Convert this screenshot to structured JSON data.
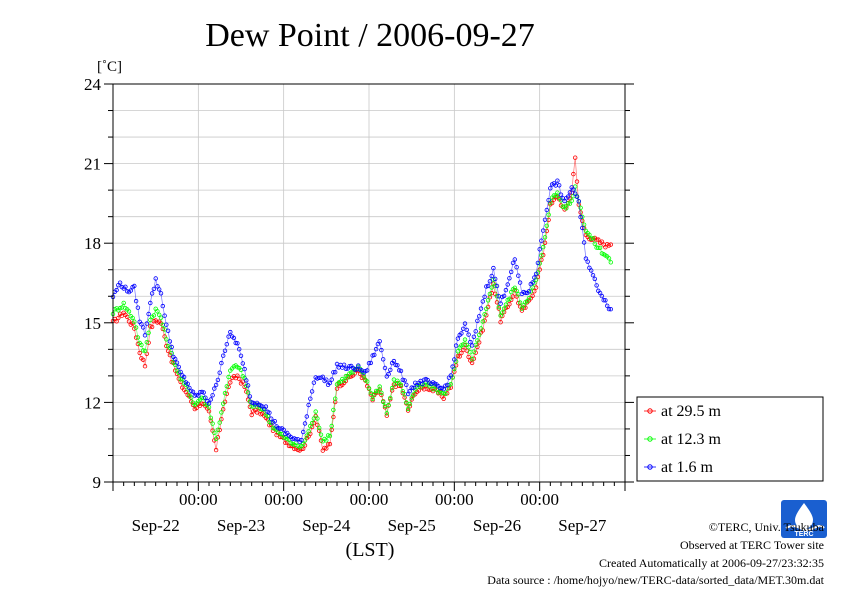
{
  "chart_data": {
    "type": "line",
    "title": "Dew Point / 2006-09-27",
    "ylabel": "[˚C]",
    "xlabel": "(LST)",
    "ylim": [
      9,
      24
    ],
    "yticks": [
      9,
      12,
      15,
      18,
      21,
      24
    ],
    "xlim_hours": [
      0,
      144
    ],
    "time_ticks": [
      "00:00",
      "00:00",
      "00:00",
      "00:00",
      "00:00"
    ],
    "date_labels": [
      "Sep-22",
      "Sep-23",
      "Sep-24",
      "Sep-25",
      "Sep-26",
      "Sep-27"
    ],
    "grid": true,
    "legend_position": "right",
    "series": [
      {
        "name": "at 29.5 m",
        "color": "#ff0000",
        "keys": [
          [
            0,
            15.0
          ],
          [
            3,
            15.4
          ],
          [
            6,
            14.8
          ],
          [
            7.5,
            13.9
          ],
          [
            9,
            13.4
          ],
          [
            10.5,
            14.8
          ],
          [
            12,
            15.1
          ],
          [
            13.5,
            15.0
          ],
          [
            15,
            14.2
          ],
          [
            17,
            13.4
          ],
          [
            19,
            12.7
          ],
          [
            21,
            12.3
          ],
          [
            23,
            11.8
          ],
          [
            25,
            12.0
          ],
          [
            27,
            11.6
          ],
          [
            29,
            10.2
          ],
          [
            31,
            11.8
          ],
          [
            33,
            12.8
          ],
          [
            35,
            13.0
          ],
          [
            37,
            12.6
          ],
          [
            39,
            11.6
          ],
          [
            41,
            11.7
          ],
          [
            43,
            11.4
          ],
          [
            45,
            11.0
          ],
          [
            47,
            10.7
          ],
          [
            50,
            10.4
          ],
          [
            53,
            10.2
          ],
          [
            55,
            10.7
          ],
          [
            57,
            11.5
          ],
          [
            59,
            10.2
          ],
          [
            61,
            10.4
          ],
          [
            63,
            12.6
          ],
          [
            66,
            12.9
          ],
          [
            69,
            13.2
          ],
          [
            71,
            12.8
          ],
          [
            73,
            12.1
          ],
          [
            75,
            12.5
          ],
          [
            77,
            11.5
          ],
          [
            79,
            12.7
          ],
          [
            81,
            12.6
          ],
          [
            83,
            11.7
          ],
          [
            85,
            12.4
          ],
          [
            88,
            12.6
          ],
          [
            91,
            12.4
          ],
          [
            93,
            12.2
          ],
          [
            95,
            12.6
          ],
          [
            97,
            13.7
          ],
          [
            99,
            14.1
          ],
          [
            101,
            13.5
          ],
          [
            103,
            14.3
          ],
          [
            105,
            15.3
          ],
          [
            107,
            16.5
          ],
          [
            109,
            15.1
          ],
          [
            111,
            15.6
          ],
          [
            113,
            16.2
          ],
          [
            115,
            15.4
          ],
          [
            117,
            15.8
          ],
          [
            119,
            16.4
          ],
          [
            121,
            17.6
          ],
          [
            123,
            19.4
          ],
          [
            125,
            19.8
          ],
          [
            127,
            19.2
          ],
          [
            129,
            19.9
          ],
          [
            130,
            21.3
          ],
          [
            131,
            19.4
          ],
          [
            133,
            18.3
          ],
          [
            136,
            18.1
          ],
          [
            139,
            17.9
          ],
          [
            140,
            18.0
          ]
        ]
      },
      {
        "name": "at 12.3 m",
        "color": "#00ff00",
        "keys": [
          [
            0,
            15.4
          ],
          [
            3,
            15.7
          ],
          [
            6,
            15.1
          ],
          [
            7.5,
            14.2
          ],
          [
            9,
            13.9
          ],
          [
            10.5,
            15.1
          ],
          [
            12,
            15.5
          ],
          [
            13.5,
            15.2
          ],
          [
            15,
            14.4
          ],
          [
            17,
            13.6
          ],
          [
            19,
            12.9
          ],
          [
            21,
            12.5
          ],
          [
            23,
            11.9
          ],
          [
            25,
            12.2
          ],
          [
            27,
            11.8
          ],
          [
            29,
            10.6
          ],
          [
            31,
            12.0
          ],
          [
            33,
            13.2
          ],
          [
            35,
            13.4
          ],
          [
            37,
            12.9
          ],
          [
            39,
            11.8
          ],
          [
            41,
            11.9
          ],
          [
            43,
            11.6
          ],
          [
            45,
            11.1
          ],
          [
            47,
            10.8
          ],
          [
            50,
            10.5
          ],
          [
            53,
            10.3
          ],
          [
            55,
            10.9
          ],
          [
            57,
            11.6
          ],
          [
            59,
            10.6
          ],
          [
            61,
            10.7
          ],
          [
            63,
            12.7
          ],
          [
            66,
            13.0
          ],
          [
            69,
            13.3
          ],
          [
            71,
            12.9
          ],
          [
            73,
            12.2
          ],
          [
            75,
            12.6
          ],
          [
            77,
            11.6
          ],
          [
            79,
            12.8
          ],
          [
            81,
            12.7
          ],
          [
            83,
            11.8
          ],
          [
            85,
            12.5
          ],
          [
            88,
            12.7
          ],
          [
            91,
            12.5
          ],
          [
            93,
            12.3
          ],
          [
            95,
            12.7
          ],
          [
            97,
            13.9
          ],
          [
            99,
            14.3
          ],
          [
            101,
            13.7
          ],
          [
            103,
            14.5
          ],
          [
            105,
            15.5
          ],
          [
            107,
            16.7
          ],
          [
            109,
            15.3
          ],
          [
            111,
            15.8
          ],
          [
            113,
            16.4
          ],
          [
            115,
            15.6
          ],
          [
            117,
            16.0
          ],
          [
            119,
            16.6
          ],
          [
            121,
            17.8
          ],
          [
            123,
            19.6
          ],
          [
            125,
            19.9
          ],
          [
            127,
            19.3
          ],
          [
            129,
            19.6
          ],
          [
            130,
            20.1
          ],
          [
            131,
            19.6
          ],
          [
            133,
            18.5
          ],
          [
            136,
            17.9
          ],
          [
            139,
            17.5
          ],
          [
            140,
            17.3
          ]
        ]
      },
      {
        "name": "at 1.6 m",
        "color": "#0000ff",
        "keys": [
          [
            0,
            16.0
          ],
          [
            2,
            16.5
          ],
          [
            4,
            16.2
          ],
          [
            6,
            16.3
          ],
          [
            7.5,
            15.1
          ],
          [
            9,
            14.6
          ],
          [
            10.5,
            15.8
          ],
          [
            12,
            16.6
          ],
          [
            13.5,
            16.1
          ],
          [
            15,
            14.9
          ],
          [
            17,
            13.8
          ],
          [
            19,
            13.1
          ],
          [
            21,
            12.7
          ],
          [
            23,
            12.2
          ],
          [
            25,
            12.4
          ],
          [
            27,
            12.0
          ],
          [
            29,
            12.6
          ],
          [
            31,
            13.8
          ],
          [
            33,
            14.6
          ],
          [
            35,
            14.2
          ],
          [
            37,
            13.2
          ],
          [
            39,
            12.0
          ],
          [
            41,
            12.0
          ],
          [
            43,
            11.8
          ],
          [
            45,
            11.3
          ],
          [
            47,
            11.0
          ],
          [
            50,
            10.7
          ],
          [
            53,
            10.5
          ],
          [
            55,
            11.9
          ],
          [
            57,
            13.0
          ],
          [
            59,
            12.9
          ],
          [
            61,
            12.7
          ],
          [
            63,
            13.4
          ],
          [
            66,
            13.3
          ],
          [
            69,
            13.3
          ],
          [
            71,
            13.1
          ],
          [
            73,
            13.7
          ],
          [
            75,
            14.3
          ],
          [
            77,
            13.0
          ],
          [
            79,
            13.6
          ],
          [
            81,
            13.1
          ],
          [
            83,
            12.4
          ],
          [
            85,
            12.7
          ],
          [
            88,
            12.8
          ],
          [
            91,
            12.6
          ],
          [
            93,
            12.5
          ],
          [
            95,
            13.0
          ],
          [
            97,
            14.4
          ],
          [
            99,
            14.9
          ],
          [
            101,
            14.1
          ],
          [
            103,
            15.3
          ],
          [
            105,
            16.3
          ],
          [
            107,
            17.0
          ],
          [
            109,
            15.7
          ],
          [
            111,
            16.5
          ],
          [
            113,
            17.4
          ],
          [
            115,
            16.1
          ],
          [
            117,
            16.2
          ],
          [
            119,
            16.9
          ],
          [
            121,
            18.5
          ],
          [
            123,
            20.1
          ],
          [
            125,
            20.3
          ],
          [
            127,
            19.5
          ],
          [
            129,
            20.1
          ],
          [
            130,
            19.9
          ],
          [
            131,
            19.5
          ],
          [
            133,
            17.5
          ],
          [
            136,
            16.4
          ],
          [
            139,
            15.7
          ],
          [
            140,
            15.5
          ]
        ]
      }
    ]
  },
  "credits": {
    "copyright": "©TERC, Univ. Tsukuba",
    "observed": "Observed at TERC Tower site",
    "created": "Created Automatically at 2006-09-27/23:32:35",
    "source": "Data source : /home/hojyo/new/TERC-data/sorted_data/MET.30m.dat"
  },
  "logo_text": "TERC"
}
